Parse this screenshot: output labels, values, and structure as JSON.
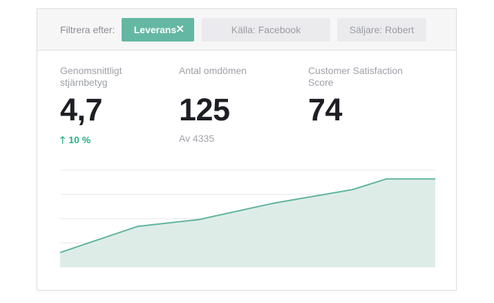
{
  "filters": {
    "label": "Filtrera efter:",
    "active": {
      "label": "Leverans",
      "remove_icon": "close-icon"
    },
    "chips": [
      {
        "label": "Källa: Facebook"
      },
      {
        "label": "Säljare: Robert"
      }
    ]
  },
  "metrics": [
    {
      "label": "Genomsnittligt stjärnbetyg",
      "value": "4,7",
      "change": "10 %",
      "change_icon": "arrow-up-icon"
    },
    {
      "label": "Antal omdömen",
      "value": "125",
      "sub": "Av 4335"
    },
    {
      "label": "Customer Satisfaction Score",
      "value": "74"
    }
  ],
  "colors": {
    "accent": "#64b8a3",
    "positive": "#2bb086",
    "line": "#5fb39d",
    "area": "#deece8"
  },
  "chart_data": {
    "type": "area",
    "values": [
      0.15,
      0.42,
      0.49,
      0.66,
      0.8,
      0.91,
      0.91
    ],
    "x": [
      0,
      0.207,
      0.37,
      0.57,
      0.78,
      0.87,
      1.0
    ],
    "ylim": [
      0,
      1
    ],
    "grid": true,
    "gridlines": 4
  }
}
